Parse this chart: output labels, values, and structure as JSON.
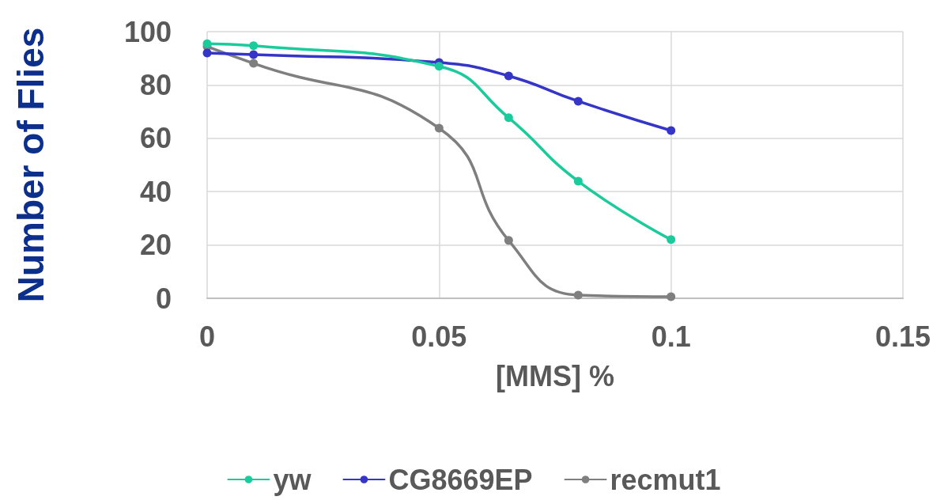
{
  "chart_data": {
    "type": "line",
    "xlabel": "[MMS] %",
    "ylabel": "Number of Flies",
    "series": [
      {
        "name": "yw",
        "color": "#1ccb9b",
        "x": [
          0,
          0.01,
          0.05,
          0.065,
          0.08,
          0.1
        ],
        "values": [
          95.5,
          94.7,
          87,
          67.7,
          43.9,
          22
        ]
      },
      {
        "name": "CG8669EP",
        "color": "#3535c8",
        "x": [
          0,
          0.01,
          0.05,
          0.065,
          0.08,
          0.1
        ],
        "values": [
          92,
          91.4,
          88.4,
          83.4,
          73.9,
          62.9
        ]
      },
      {
        "name": "recmut1",
        "color": "#7f7f7f",
        "x": [
          0,
          0.01,
          0.05,
          0.065,
          0.08,
          0.1
        ],
        "values": [
          94.4,
          88.1,
          63.8,
          21.7,
          1.2,
          0.6
        ]
      }
    ],
    "xlim": [
      0,
      0.15
    ],
    "xticks": [
      0,
      0.05,
      0.1,
      0.15
    ],
    "ylim": [
      0,
      100
    ],
    "yticks": [
      0,
      20,
      40,
      60,
      80,
      100
    ],
    "grid": true,
    "legend": "bottom",
    "marker": "circle",
    "line_style": "solid"
  }
}
